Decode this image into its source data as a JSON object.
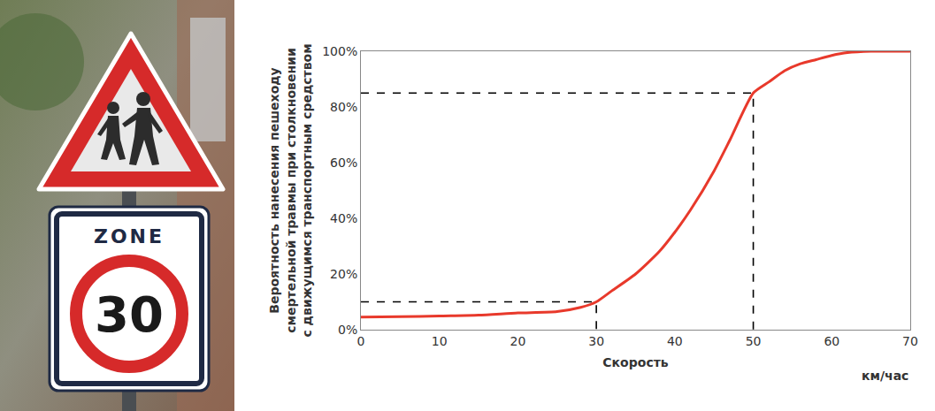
{
  "sign": {
    "text": "ZONE",
    "speed_limit": 30
  },
  "chart_data": {
    "type": "line",
    "x_label": "Скорость",
    "x_unit": "км/час",
    "y_label": [
      "Вероятность нанесения пешеходу",
      "смертельной травмы при столкновении",
      "с движущимся транспортным средством"
    ],
    "x": [
      0,
      5,
      10,
      15,
      20,
      25,
      28,
      30,
      32,
      35,
      38,
      40,
      42,
      45,
      47,
      50,
      52,
      54,
      56,
      58,
      60,
      62,
      65,
      70
    ],
    "values": [
      4.5,
      4.7,
      4.9,
      5.2,
      6,
      6.5,
      8,
      10,
      14,
      20,
      28,
      35,
      43,
      57,
      68,
      85,
      89,
      93,
      95.5,
      97,
      98.5,
      99.5,
      100,
      100
    ],
    "color": "#e8392b",
    "line_style": "solid",
    "xlim": [
      0,
      70
    ],
    "xticks": [
      0,
      10,
      20,
      30,
      40,
      50,
      60,
      70
    ],
    "ylim": [
      0,
      100
    ],
    "yticks": [
      {
        "value": 0,
        "label": "0%"
      },
      {
        "value": 20,
        "label": "20%"
      },
      {
        "value": 40,
        "label": "40%"
      },
      {
        "value": 60,
        "label": "60%"
      },
      {
        "value": 80,
        "label": "80%"
      },
      {
        "value": 100,
        "label": "100%"
      }
    ],
    "grid": false,
    "reference_lines": {
      "line_style": "dashed",
      "points": [
        {
          "x": 30,
          "y": 10
        },
        {
          "x": 50,
          "y": 85
        }
      ]
    }
  }
}
